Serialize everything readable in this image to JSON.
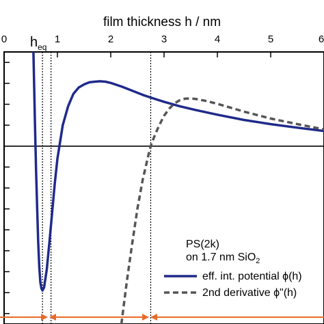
{
  "chart_data": {
    "type": "line",
    "xlabel": "film thickness h / nm",
    "xlim": [
      0,
      6
    ],
    "x_ticks": [
      0,
      1,
      2,
      3,
      4,
      5,
      6
    ],
    "x_tick_labels": [
      "0",
      "1",
      "2",
      "3",
      "4",
      "5",
      "6"
    ],
    "ylim": [
      -8.5,
      4.5
    ],
    "grid": false,
    "zero_line": 0,
    "legend": {
      "placement": "bottom-right",
      "header_line1": "PS(2k)",
      "header_line2_main": "on 1.7 nm SiO",
      "header_line2_sub": "2"
    },
    "annotation": {
      "label_main": "h",
      "label_sub": "eq",
      "h_eq": 0.72
    },
    "vertical_lines": [
      0.72,
      0.88,
      2.75
    ],
    "series": [
      {
        "name": "eff. int. potential ϕ(h)",
        "color": "#1f2a8a",
        "style": "solid",
        "x": [
          0.55,
          0.58,
          0.6,
          0.62,
          0.64,
          0.66,
          0.68,
          0.7,
          0.72,
          0.75,
          0.8,
          0.85,
          0.9,
          0.95,
          1.0,
          1.1,
          1.2,
          1.3,
          1.4,
          1.5,
          1.6,
          1.7,
          1.8,
          1.9,
          2.0,
          2.2,
          2.4,
          2.6,
          2.8,
          3.0,
          3.3,
          3.6,
          4.0,
          4.5,
          5.0,
          5.5,
          6.0
        ],
        "y": [
          4.5,
          1.0,
          -1.2,
          -3.0,
          -4.6,
          -5.8,
          -6.5,
          -6.8,
          -6.9,
          -6.75,
          -5.9,
          -4.6,
          -3.2,
          -1.8,
          -0.6,
          1.0,
          1.9,
          2.5,
          2.8,
          2.95,
          3.05,
          3.08,
          3.1,
          3.08,
          3.02,
          2.85,
          2.65,
          2.45,
          2.28,
          2.12,
          1.9,
          1.72,
          1.5,
          1.25,
          1.05,
          0.88,
          0.72
        ]
      },
      {
        "name": "2nd derivative ϕ\"(h)",
        "color": "#555555",
        "style": "dashed",
        "x": [
          2.2,
          2.3,
          2.4,
          2.5,
          2.6,
          2.7,
          2.75,
          2.8,
          2.9,
          3.0,
          3.1,
          3.2,
          3.3,
          3.4,
          3.5,
          3.6,
          3.8,
          4.0,
          4.5,
          5.0,
          5.5,
          6.0
        ],
        "y": [
          -8.5,
          -6.5,
          -4.7,
          -3.0,
          -1.6,
          -0.5,
          0.0,
          0.35,
          0.95,
          1.45,
          1.8,
          2.05,
          2.2,
          2.27,
          2.28,
          2.25,
          2.15,
          2.02,
          1.65,
          1.32,
          1.05,
          0.8
        ]
      }
    ]
  }
}
